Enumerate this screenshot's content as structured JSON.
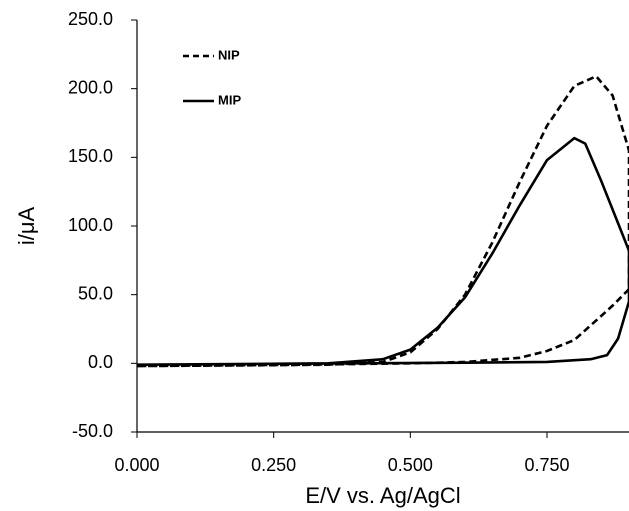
{
  "chart_data": {
    "type": "line",
    "x_label": "E/V vs. Ag/AgCl",
    "y_label": "i/μA",
    "xlim": [
      0,
      0.9
    ],
    "ylim": [
      -50,
      250
    ],
    "xticks": [
      {
        "value": 0,
        "label": "0.000"
      },
      {
        "value": 0.25,
        "label": "0.250"
      },
      {
        "value": 0.5,
        "label": "0.500"
      },
      {
        "value": 0.75,
        "label": "0.750"
      }
    ],
    "yticks": [
      {
        "value": -50,
        "label": "-50.0"
      },
      {
        "value": 0,
        "label": "0.0"
      },
      {
        "value": 50,
        "label": "50.0"
      },
      {
        "value": 100,
        "label": "100.0"
      },
      {
        "value": 150,
        "label": "150.0"
      },
      {
        "value": 200,
        "label": "200.0"
      },
      {
        "value": 250,
        "label": "250.0"
      }
    ],
    "series": [
      {
        "name": "NIP",
        "color": "#000000",
        "dash": true,
        "x": [
          0,
          0.2,
          0.35,
          0.45,
          0.5,
          0.55,
          0.6,
          0.65,
          0.7,
          0.75,
          0.8,
          0.84,
          0.87,
          0.9,
          0.9,
          0.87,
          0.845,
          0.8,
          0.75,
          0.7,
          0.6,
          0.5,
          0.3,
          0
        ],
        "values": [
          -2,
          -1.5,
          -1,
          1,
          8,
          25,
          50,
          88,
          132,
          173,
          202,
          209,
          195,
          155,
          54,
          42,
          33,
          17,
          9,
          4,
          1,
          0,
          -1,
          -2
        ]
      },
      {
        "name": "MIP",
        "color": "#000000",
        "dash": false,
        "x": [
          0,
          0.2,
          0.35,
          0.45,
          0.5,
          0.55,
          0.6,
          0.65,
          0.7,
          0.75,
          0.8,
          0.82,
          0.85,
          0.88,
          0.9,
          0.9,
          0.88,
          0.86,
          0.83,
          0.75,
          0.6,
          0.4,
          0
        ],
        "values": [
          -1,
          -0.5,
          0,
          3,
          10,
          26,
          48,
          80,
          115,
          148,
          164,
          160,
          132,
          102,
          82,
          45,
          18,
          6,
          3,
          1,
          0.5,
          0,
          -1
        ]
      }
    ]
  }
}
